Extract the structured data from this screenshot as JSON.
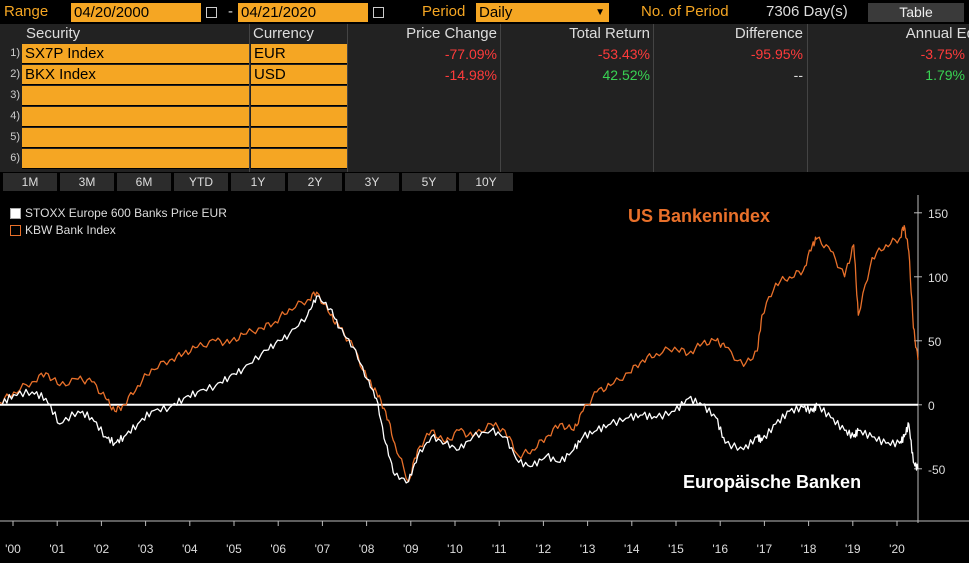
{
  "toolbar": {
    "range_label": "Range",
    "start_date": "04/20/2000",
    "dash": "-",
    "end_date": "04/21/2020",
    "period_label": "Period",
    "period_value": "Daily",
    "num_period_label": "No. of Period",
    "num_period_value": "7306 Day(s)",
    "table_button": "Table"
  },
  "grid": {
    "headers": [
      "Security",
      "Currency",
      "Price Change",
      "Total Return",
      "Difference",
      "Annual Eq"
    ],
    "rows": [
      {
        "num": "1)",
        "security": "SX7P Index",
        "currency": "EUR",
        "price_change": "-77.09%",
        "total_return": "-53.43%",
        "difference": "-95.95%",
        "annual_eq": "-3.75%"
      },
      {
        "num": "2)",
        "security": "BKX Index",
        "currency": "USD",
        "price_change": "-14.98%",
        "total_return": "42.52%",
        "difference": "--",
        "annual_eq": "1.79%"
      },
      {
        "num": "3)",
        "security": "",
        "currency": ""
      },
      {
        "num": "4)",
        "security": "",
        "currency": ""
      },
      {
        "num": "5)",
        "security": "",
        "currency": ""
      },
      {
        "num": "6)",
        "security": "",
        "currency": ""
      }
    ]
  },
  "period_buttons": [
    "1M",
    "3M",
    "6M",
    "YTD",
    "1Y",
    "2Y",
    "3Y",
    "5Y",
    "10Y"
  ],
  "colors": {
    "orange": "#e8702a",
    "white": "#ffffff",
    "accent": "#f5a623",
    "red": "#ff3b3b",
    "green": "#39d353"
  },
  "chart_data": {
    "type": "line",
    "legend": [
      {
        "name": "STOXX Europe 600 Banks Price EUR",
        "color": "#ffffff"
      },
      {
        "name": "KBW Bank Index",
        "color": "#e8702a"
      }
    ],
    "annotations": {
      "us": "US Bankenindex",
      "eu": "Europäische Banken"
    },
    "x_ticks": [
      "'00",
      "'01",
      "'02",
      "'03",
      "'04",
      "'05",
      "'06",
      "'07",
      "'08",
      "'09",
      "'10",
      "'11",
      "'12",
      "'13",
      "'14",
      "'15",
      "'16",
      "'17",
      "'18",
      "'19",
      "'20"
    ],
    "y_ticks": [
      150,
      100,
      50,
      0,
      -50
    ],
    "ylim": [
      -90,
      160
    ],
    "xlim": [
      2000.3,
      2020.3
    ],
    "series": [
      {
        "name": "KBW Bank Index",
        "color": "#e8702a",
        "x": [
          2000.3,
          2000.6,
          2001.0,
          2001.3,
          2001.6,
          2002.0,
          2002.3,
          2002.6,
          2002.8,
          2003.0,
          2003.3,
          2003.6,
          2004.0,
          2004.3,
          2004.6,
          2005.0,
          2005.3,
          2005.6,
          2006.0,
          2006.3,
          2006.6,
          2007.0,
          2007.2,
          2007.5,
          2007.7,
          2008.0,
          2008.3,
          2008.5,
          2008.7,
          2008.9,
          2009.2,
          2009.4,
          2009.7,
          2010.0,
          2010.3,
          2010.6,
          2011.0,
          2011.3,
          2011.6,
          2011.9,
          2012.2,
          2012.5,
          2012.8,
          2013.0,
          2013.3,
          2013.6,
          2014.0,
          2014.3,
          2014.6,
          2015.0,
          2015.3,
          2015.6,
          2015.9,
          2016.1,
          2016.5,
          2016.8,
          2016.9,
          2017.2,
          2017.5,
          2017.8,
          2018.0,
          2018.1,
          2018.4,
          2018.7,
          2018.9,
          2019.0,
          2019.3,
          2019.6,
          2019.9,
          2020.0,
          2020.1,
          2020.2,
          2020.3
        ],
        "y": [
          2,
          10,
          18,
          25,
          15,
          20,
          18,
          5,
          -5,
          0,
          15,
          28,
          35,
          40,
          45,
          50,
          48,
          55,
          60,
          65,
          75,
          82,
          88,
          70,
          60,
          45,
          20,
          10,
          -5,
          -30,
          -60,
          -35,
          -20,
          -30,
          -20,
          -25,
          -15,
          -20,
          -40,
          -35,
          -25,
          -15,
          -20,
          -5,
          10,
          15,
          25,
          35,
          40,
          45,
          40,
          48,
          50,
          45,
          30,
          42,
          70,
          95,
          100,
          105,
          125,
          130,
          120,
          100,
          125,
          70,
          115,
          125,
          130,
          140,
          120,
          60,
          35
        ]
      },
      {
        "name": "STOXX Europe 600 Banks Price EUR",
        "color": "#ffffff",
        "x": [
          2000.3,
          2000.6,
          2001.0,
          2001.3,
          2001.6,
          2002.0,
          2002.3,
          2002.6,
          2002.8,
          2003.0,
          2003.3,
          2003.6,
          2004.0,
          2004.3,
          2004.6,
          2005.0,
          2005.3,
          2005.6,
          2006.0,
          2006.3,
          2006.6,
          2007.0,
          2007.2,
          2007.5,
          2007.7,
          2008.0,
          2008.3,
          2008.5,
          2008.7,
          2008.9,
          2009.2,
          2009.4,
          2009.7,
          2010.0,
          2010.3,
          2010.6,
          2011.0,
          2011.3,
          2011.6,
          2011.9,
          2012.2,
          2012.5,
          2012.8,
          2013.0,
          2013.3,
          2013.6,
          2014.0,
          2014.3,
          2014.6,
          2015.0,
          2015.3,
          2015.6,
          2015.9,
          2016.1,
          2016.5,
          2016.8,
          2016.9,
          2017.2,
          2017.5,
          2017.8,
          2018.0,
          2018.1,
          2018.4,
          2018.7,
          2018.9,
          2019.0,
          2019.3,
          2019.6,
          2019.9,
          2020.0,
          2020.1,
          2020.2,
          2020.3
        ],
        "y": [
          0,
          8,
          10,
          5,
          -15,
          -5,
          -10,
          -25,
          -30,
          -25,
          -15,
          -5,
          -2,
          5,
          10,
          15,
          22,
          28,
          40,
          48,
          55,
          70,
          85,
          75,
          60,
          45,
          20,
          5,
          -30,
          -55,
          -60,
          -40,
          -25,
          -30,
          -35,
          -25,
          -20,
          -25,
          -45,
          -48,
          -40,
          -45,
          -35,
          -25,
          -20,
          -15,
          -10,
          -8,
          -10,
          -5,
          5,
          0,
          -10,
          -30,
          -35,
          -25,
          -28,
          -15,
          -5,
          -2,
          -5,
          0,
          -10,
          -20,
          -25,
          -20,
          -25,
          -30,
          -30,
          -25,
          -15,
          -45,
          -50
        ]
      }
    ]
  }
}
